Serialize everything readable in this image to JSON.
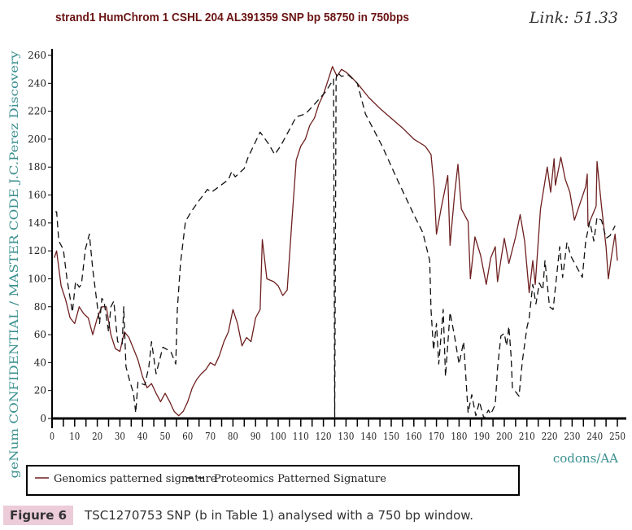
{
  "chart_data": {
    "type": "line",
    "title": "strand1 HumChrom  1 CSHL 204 AL391359  SNP bp 58750  in 750bps",
    "link_label": "Link: 51.33",
    "ylabel": "geNum CONFIDENTIAL / MASTER CODE J.C.Perez Discovery",
    "xlabel": "codons/AA",
    "xlim": [
      0,
      250
    ],
    "ylim": [
      0,
      260
    ],
    "xticks": [
      0,
      10,
      20,
      30,
      40,
      50,
      60,
      70,
      80,
      90,
      100,
      110,
      120,
      130,
      140,
      150,
      160,
      170,
      180,
      190,
      200,
      210,
      220,
      230,
      240,
      250
    ],
    "yticks": [
      0,
      20,
      40,
      60,
      80,
      100,
      120,
      140,
      160,
      180,
      200,
      220,
      240,
      260
    ],
    "grid": false,
    "legend_position": "bottom",
    "series": [
      {
        "name": "Genomics patterned signature",
        "style": "solid",
        "color": "#6e1f1f",
        "points": [
          [
            1,
            115
          ],
          [
            2,
            120
          ],
          [
            4,
            95
          ],
          [
            6,
            85
          ],
          [
            8,
            72
          ],
          [
            10,
            68
          ],
          [
            12,
            80
          ],
          [
            14,
            75
          ],
          [
            16,
            72
          ],
          [
            18,
            60
          ],
          [
            20,
            72
          ],
          [
            22,
            80
          ],
          [
            24,
            80
          ],
          [
            26,
            60
          ],
          [
            28,
            50
          ],
          [
            30,
            48
          ],
          [
            32,
            62
          ],
          [
            34,
            58
          ],
          [
            36,
            50
          ],
          [
            38,
            42
          ],
          [
            40,
            30
          ],
          [
            42,
            22
          ],
          [
            44,
            25
          ],
          [
            46,
            18
          ],
          [
            48,
            12
          ],
          [
            50,
            18
          ],
          [
            52,
            12
          ],
          [
            54,
            5
          ],
          [
            56,
            2
          ],
          [
            58,
            5
          ],
          [
            60,
            12
          ],
          [
            62,
            22
          ],
          [
            64,
            28
          ],
          [
            66,
            32
          ],
          [
            68,
            35
          ],
          [
            70,
            40
          ],
          [
            72,
            38
          ],
          [
            74,
            45
          ],
          [
            76,
            55
          ],
          [
            78,
            62
          ],
          [
            80,
            78
          ],
          [
            82,
            68
          ],
          [
            84,
            52
          ],
          [
            86,
            58
          ],
          [
            88,
            55
          ],
          [
            90,
            72
          ],
          [
            92,
            78
          ],
          [
            93,
            128
          ],
          [
            95,
            100
          ],
          [
            98,
            98
          ],
          [
            100,
            95
          ],
          [
            102,
            88
          ],
          [
            104,
            92
          ],
          [
            106,
            140
          ],
          [
            108,
            185
          ],
          [
            110,
            195
          ],
          [
            112,
            200
          ],
          [
            114,
            210
          ],
          [
            116,
            215
          ],
          [
            118,
            225
          ],
          [
            120,
            232
          ],
          [
            122,
            242
          ],
          [
            124,
            252
          ],
          [
            126,
            245
          ],
          [
            128,
            250
          ],
          [
            130,
            248
          ],
          [
            132,
            245
          ],
          [
            135,
            240
          ],
          [
            140,
            230
          ],
          [
            145,
            222
          ],
          [
            150,
            215
          ],
          [
            155,
            208
          ],
          [
            160,
            200
          ],
          [
            165,
            195
          ],
          [
            167.6,
            189
          ],
          [
            169,
            165
          ],
          [
            170,
            132
          ],
          [
            172,
            150
          ],
          [
            175,
            174
          ],
          [
            176,
            124
          ],
          [
            178,
            160
          ],
          [
            179.5,
            182
          ],
          [
            181,
            150
          ],
          [
            184,
            141
          ],
          [
            185,
            100
          ],
          [
            187,
            130
          ],
          [
            189.5,
            117
          ],
          [
            192,
            96
          ],
          [
            194,
            115
          ],
          [
            196,
            123
          ],
          [
            197,
            98
          ],
          [
            200,
            129
          ],
          [
            202,
            111
          ],
          [
            205,
            130
          ],
          [
            207,
            146
          ],
          [
            209,
            127
          ],
          [
            211,
            90
          ],
          [
            212.6,
            113
          ],
          [
            213.7,
            96
          ],
          [
            216,
            150
          ],
          [
            219,
            180
          ],
          [
            220.5,
            162
          ],
          [
            222,
            186
          ],
          [
            222.6,
            167
          ],
          [
            225,
            187
          ],
          [
            227,
            171
          ],
          [
            229,
            162
          ],
          [
            231,
            142
          ],
          [
            236,
            166
          ],
          [
            236.7,
            175
          ],
          [
            237,
            138
          ],
          [
            240.6,
            152
          ],
          [
            241,
            184
          ],
          [
            243,
            152
          ],
          [
            245,
            123
          ],
          [
            246,
            100
          ],
          [
            247.5,
            117
          ],
          [
            249,
            132
          ],
          [
            250,
            113
          ]
        ]
      },
      {
        "name": "Proteomics Patterned Signature",
        "style": "dashed",
        "color": "#111111",
        "points": [
          [
            1.4,
            148
          ],
          [
            2,
            148
          ],
          [
            3,
            127
          ],
          [
            5,
            121
          ],
          [
            6.5,
            101
          ],
          [
            8.6,
            80
          ],
          [
            9,
            76
          ],
          [
            10.4,
            98
          ],
          [
            12,
            94
          ],
          [
            13,
            96
          ],
          [
            14.7,
            121
          ],
          [
            16.5,
            132
          ],
          [
            18,
            107
          ],
          [
            21,
            68
          ],
          [
            22,
            86
          ],
          [
            23,
            84
          ],
          [
            23.7,
            76
          ],
          [
            25,
            62
          ],
          [
            26,
            80
          ],
          [
            27.3,
            84
          ],
          [
            29,
            55
          ],
          [
            31,
            53
          ],
          [
            31.7,
            80
          ],
          [
            32.7,
            37
          ],
          [
            34.5,
            26
          ],
          [
            36,
            18
          ],
          [
            37,
            4
          ],
          [
            38,
            26
          ],
          [
            41,
            24
          ],
          [
            42.8,
            37
          ],
          [
            44,
            55
          ],
          [
            46,
            32
          ],
          [
            49,
            51
          ],
          [
            52.5,
            48
          ],
          [
            54.7,
            39
          ],
          [
            55.4,
            78
          ],
          [
            56.8,
            111
          ],
          [
            59,
            141
          ],
          [
            61.5,
            148
          ],
          [
            65,
            156
          ],
          [
            68.7,
            164
          ],
          [
            70.5,
            162
          ],
          [
            78,
            171
          ],
          [
            79.5,
            177
          ],
          [
            81,
            173
          ],
          [
            85,
            179
          ],
          [
            86.7,
            187
          ],
          [
            92,
            205
          ],
          [
            95.6,
            197
          ],
          [
            98.5,
            189
          ],
          [
            101,
            195
          ],
          [
            104.7,
            206
          ],
          [
            108,
            216
          ],
          [
            112,
            218
          ],
          [
            115.5,
            224
          ],
          [
            121,
            234
          ],
          [
            124.5,
            243
          ],
          [
            125,
            0
          ],
          [
            125.6,
            243
          ],
          [
            126,
            248
          ],
          [
            128,
            245
          ],
          [
            131,
            246
          ],
          [
            135,
            240
          ],
          [
            138.6,
            218
          ],
          [
            146,
            195
          ],
          [
            153,
            170
          ],
          [
            160,
            146
          ],
          [
            164,
            133
          ],
          [
            167,
            113
          ],
          [
            167.6,
            78
          ],
          [
            168.7,
            49
          ],
          [
            170,
            68
          ],
          [
            171,
            39
          ],
          [
            173,
            78
          ],
          [
            174,
            30
          ],
          [
            176,
            76
          ],
          [
            178,
            59
          ],
          [
            180,
            39
          ],
          [
            182,
            55
          ],
          [
            184,
            4
          ],
          [
            185.6,
            17
          ],
          [
            187.4,
            2
          ],
          [
            189,
            12
          ],
          [
            191,
            0
          ],
          [
            193,
            6
          ],
          [
            194,
            3
          ],
          [
            196,
            10
          ],
          [
            197,
            36
          ],
          [
            198.5,
            59
          ],
          [
            200,
            61
          ],
          [
            201,
            52
          ],
          [
            202,
            66
          ],
          [
            203,
            45
          ],
          [
            203.6,
            22
          ],
          [
            206.5,
            16
          ],
          [
            208,
            41
          ],
          [
            210,
            65
          ],
          [
            211,
            72
          ],
          [
            212.6,
            96
          ],
          [
            214,
            82
          ],
          [
            215.5,
            97
          ],
          [
            217,
            92
          ],
          [
            218,
            113
          ],
          [
            220,
            80
          ],
          [
            221.6,
            78
          ],
          [
            224.5,
            123
          ],
          [
            225.8,
            101
          ],
          [
            227.7,
            126
          ],
          [
            229.5,
            116
          ],
          [
            234.5,
            101
          ],
          [
            236,
            127
          ],
          [
            237.8,
            141
          ],
          [
            239.6,
            127
          ],
          [
            241,
            144
          ],
          [
            243,
            142
          ],
          [
            245,
            129
          ],
          [
            246.8,
            131
          ],
          [
            249,
            138
          ]
        ]
      }
    ]
  },
  "caption": {
    "label": "Figure 6",
    "text": "TSC1270753 SNP (b in Table 1) analysed with a 750 bp window."
  }
}
